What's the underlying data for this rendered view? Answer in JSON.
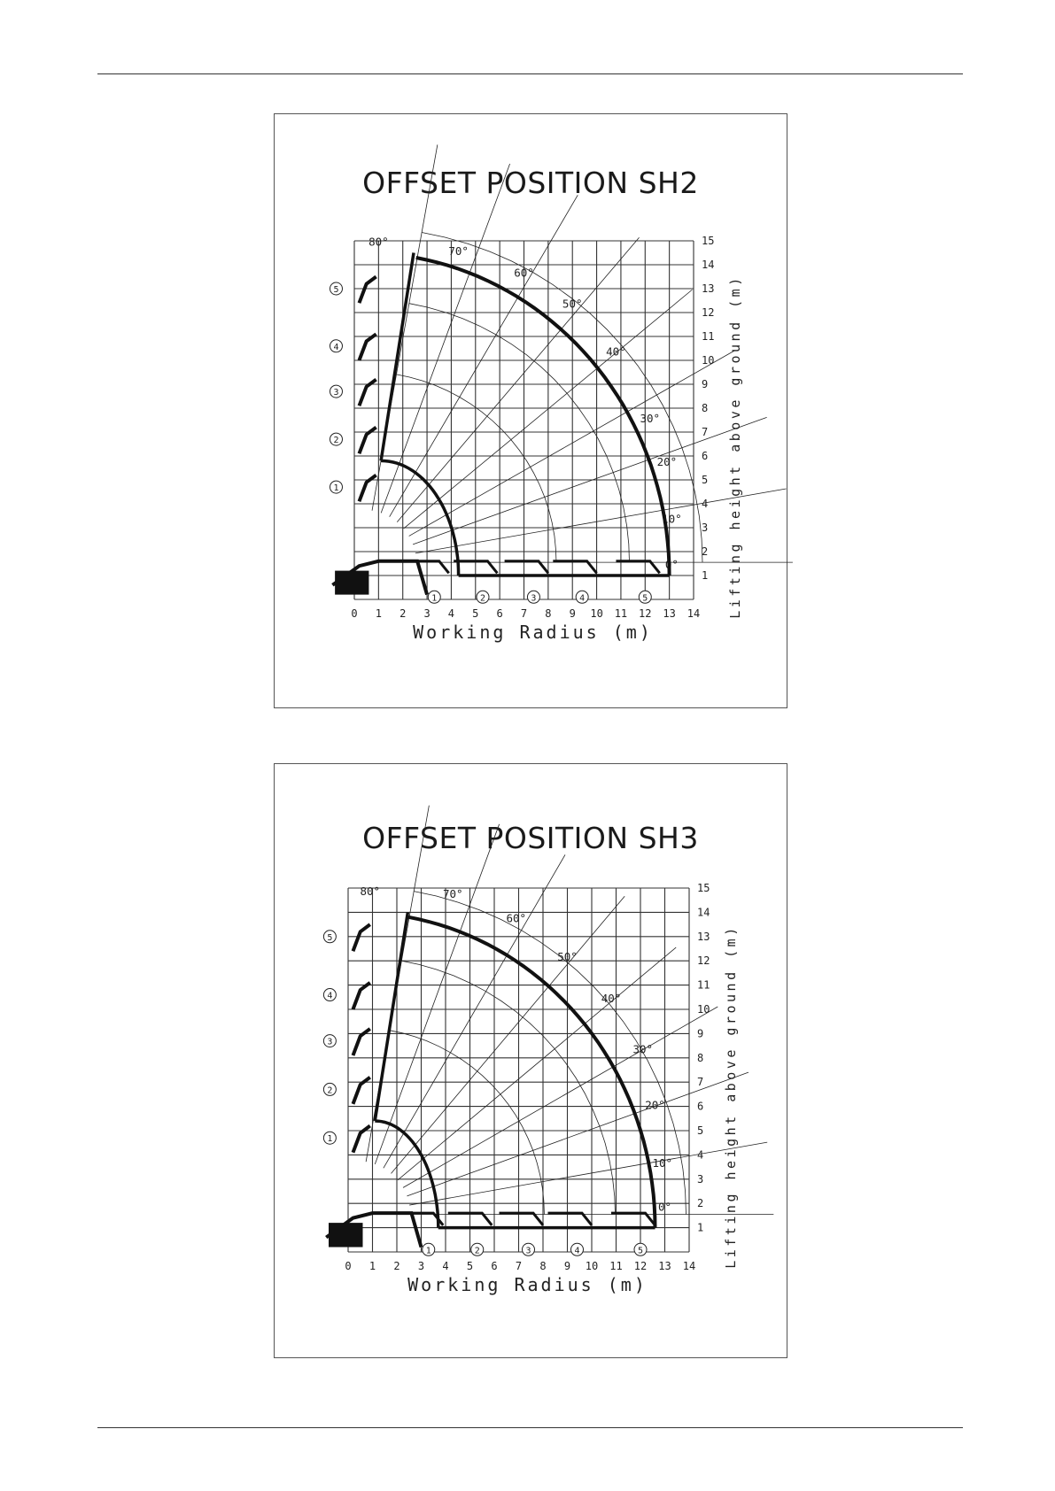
{
  "charts": [
    {
      "id": "sh2",
      "title": "OFFSET POSITION SH2",
      "xlabel": "Working Radius  (m)",
      "ylabel": "Lifting height above ground (m)",
      "x_ticks": [
        "0",
        "1",
        "2",
        "3",
        "4",
        "5",
        "6",
        "7",
        "8",
        "9",
        "10",
        "11",
        "12",
        "13",
        "14"
      ],
      "y_ticks": [
        "1",
        "2",
        "3",
        "4",
        "5",
        "6",
        "7",
        "8",
        "9",
        "10",
        "11",
        "12",
        "13",
        "14",
        "15"
      ],
      "angle_labels": [
        "80°",
        "70°",
        "60°",
        "50°",
        "40°",
        "30°",
        "20°",
        "10°",
        "0°"
      ],
      "extension_markers": [
        "1",
        "2",
        "3",
        "4",
        "5"
      ],
      "envelope": {
        "max_height": 14.5,
        "max_radius": 13,
        "min_radius": 4.3,
        "min_height_point": 5.8
      }
    },
    {
      "id": "sh3",
      "title": "OFFSET POSITION SH3",
      "xlabel": "Working Radius  (m)",
      "ylabel": "Lifting height above ground (m)",
      "x_ticks": [
        "0",
        "1",
        "2",
        "3",
        "4",
        "5",
        "6",
        "7",
        "8",
        "9",
        "10",
        "11",
        "12",
        "13",
        "14"
      ],
      "y_ticks": [
        "1",
        "2",
        "3",
        "4",
        "5",
        "6",
        "7",
        "8",
        "9",
        "10",
        "11",
        "12",
        "13",
        "14",
        "15"
      ],
      "angle_labels": [
        "80°",
        "70°",
        "60°",
        "50°",
        "40°",
        "30°",
        "20°",
        "10°",
        "0°"
      ],
      "extension_markers": [
        "1",
        "2",
        "3",
        "4",
        "5"
      ],
      "envelope": {
        "max_height": 14,
        "max_radius": 12.6,
        "min_radius": 3.7,
        "min_height_point": 5.4
      }
    }
  ]
}
